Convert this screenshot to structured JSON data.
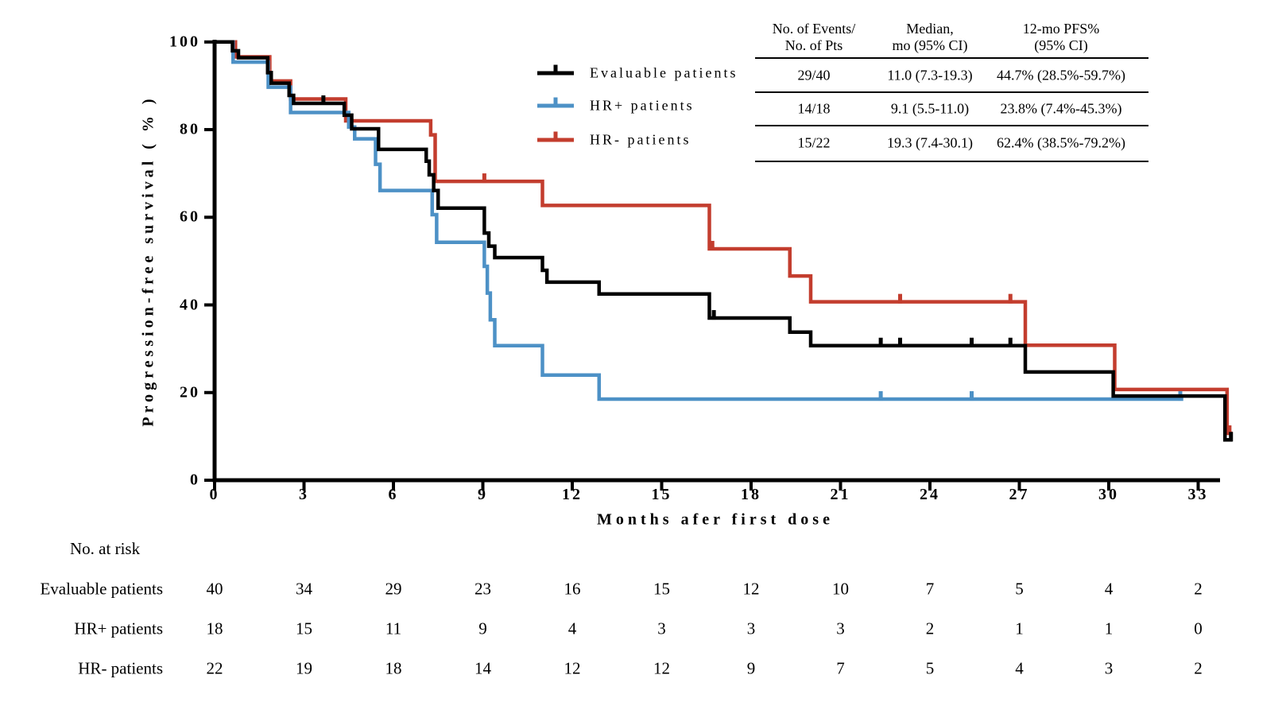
{
  "figure": {
    "y_axis": {
      "title": "Progression-free survival ( % )",
      "ticks": [
        {
          "label": "0",
          "value": 0
        },
        {
          "label": "20",
          "value": 20
        },
        {
          "label": "40",
          "value": 40
        },
        {
          "label": "60",
          "value": 60
        },
        {
          "label": "80",
          "value": 80
        },
        {
          "label": "100",
          "value": 100
        }
      ]
    },
    "x_axis": {
      "title": "Months afer first dose",
      "ticks": [
        {
          "label": "0",
          "value": 0
        },
        {
          "label": "3",
          "value": 3
        },
        {
          "label": "6",
          "value": 6
        },
        {
          "label": "9",
          "value": 9
        },
        {
          "label": "12",
          "value": 12
        },
        {
          "label": "15",
          "value": 15
        },
        {
          "label": "18",
          "value": 18
        },
        {
          "label": "21",
          "value": 21
        },
        {
          "label": "24",
          "value": 24
        },
        {
          "label": "27",
          "value": 27
        },
        {
          "label": "30",
          "value": 30
        },
        {
          "label": "33",
          "value": 33
        }
      ]
    }
  },
  "legend": [
    {
      "label": "Evaluable patients",
      "color": "#000000"
    },
    {
      "label": "HR+ patients",
      "color": "#4d91c6"
    },
    {
      "label": "HR- patients",
      "color": "#c33d2e"
    }
  ],
  "summary_table": {
    "col_headers": [
      [
        "No. of Events/",
        "No. of Pts"
      ],
      [
        "Median,",
        "mo (95% CI)"
      ],
      [
        "12-mo PFS%",
        "(95% CI)"
      ]
    ],
    "rows": [
      [
        "29/40",
        "11.0 (7.3-19.3)",
        "44.7% (28.5%-59.7%)"
      ],
      [
        "14/18",
        "9.1 (5.5-11.0)",
        "23.8% (7.4%-45.3%)"
      ],
      [
        "15/22",
        "19.3 (7.4-30.1)",
        "62.4% (38.5%-79.2%)"
      ]
    ]
  },
  "at_risk": {
    "title": "No. at risk",
    "time_points": [
      0,
      3,
      6,
      9,
      12,
      15,
      18,
      21,
      24,
      27,
      30,
      33
    ],
    "rows": [
      {
        "label": "Evaluable patients",
        "counts": [
          40,
          34,
          29,
          23,
          16,
          15,
          12,
          10,
          7,
          5,
          4,
          2
        ]
      },
      {
        "label": "HR+ patients",
        "counts": [
          18,
          15,
          11,
          9,
          4,
          3,
          3,
          3,
          2,
          1,
          1,
          0
        ]
      },
      {
        "label": "HR- patients",
        "counts": [
          22,
          19,
          18,
          14,
          12,
          12,
          9,
          7,
          5,
          4,
          3,
          2
        ]
      }
    ]
  },
  "chart_data": {
    "type": "line",
    "subtype": "kaplan-meier-step",
    "title": "",
    "xlabel": "Months afer first dose",
    "ylabel": "Progression-free survival ( % )",
    "xlim": [
      0,
      35.5
    ],
    "ylim": [
      0,
      100
    ],
    "grid": false,
    "legend_position": "upper-center-left",
    "series": [
      {
        "name": "Evaluable patients",
        "color": "#000000",
        "events_over_pts": "29/40",
        "median_mo_95ci": "11.0 (7.3-19.3)",
        "pfs12_95ci": "44.7% (28.5%-59.7%)",
        "steps": [
          [
            0,
            100
          ],
          [
            0.6,
            98.0
          ],
          [
            0.8,
            96.4
          ],
          [
            1.78,
            93.0
          ],
          [
            1.9,
            90.6
          ],
          [
            2.5,
            87.8
          ],
          [
            2.65,
            86.0
          ],
          [
            4.35,
            83.3
          ],
          [
            4.6,
            80.2
          ],
          [
            5.5,
            75.5
          ],
          [
            7.1,
            72.8
          ],
          [
            7.2,
            69.7
          ],
          [
            7.35,
            66.1
          ],
          [
            7.5,
            62.1
          ],
          [
            9.05,
            56.4
          ],
          [
            9.2,
            53.4
          ],
          [
            9.4,
            50.8
          ],
          [
            11.0,
            47.9
          ],
          [
            11.15,
            45.2
          ],
          [
            12.9,
            42.5
          ],
          [
            16.6,
            37.0
          ],
          [
            19.3,
            33.8
          ],
          [
            20.0,
            30.7
          ],
          [
            27.2,
            24.7
          ],
          [
            30.15,
            19.2
          ],
          [
            33.9,
            9.2
          ]
        ],
        "end": 34.15,
        "censors": [
          [
            3.65,
            86.0
          ],
          [
            16.75,
            37.0
          ],
          [
            22.35,
            30.7
          ],
          [
            23.0,
            30.7
          ],
          [
            25.4,
            30.7
          ],
          [
            26.7,
            30.7
          ],
          [
            34.1,
            9.2
          ]
        ]
      },
      {
        "name": "HR+ patients",
        "color": "#4d91c6",
        "events_over_pts": "14/18",
        "median_mo_95ci": "9.1 (5.5-11.0)",
        "pfs12_95ci": "23.8% (7.4%-45.3%)",
        "steps": [
          [
            0,
            100
          ],
          [
            0.62,
            95.4
          ],
          [
            1.8,
            89.7
          ],
          [
            2.55,
            83.9
          ],
          [
            4.5,
            80.6
          ],
          [
            4.7,
            77.9
          ],
          [
            5.4,
            72.1
          ],
          [
            5.55,
            66.1
          ],
          [
            7.3,
            60.6
          ],
          [
            7.45,
            54.3
          ],
          [
            9.05,
            48.8
          ],
          [
            9.15,
            42.7
          ],
          [
            9.25,
            36.6
          ],
          [
            9.4,
            30.7
          ],
          [
            11.0,
            24.0
          ],
          [
            12.9,
            18.5
          ]
        ],
        "end": 32.5,
        "censors": [
          [
            22.35,
            18.5
          ],
          [
            25.4,
            18.5
          ],
          [
            32.4,
            18.5
          ]
        ]
      },
      {
        "name": "HR- patients",
        "color": "#c33d2e",
        "events_over_pts": "15/22",
        "median_mo_95ci": "19.3 (7.4-30.1)",
        "pfs12_95ci": "62.4% (38.5%-79.2%)",
        "steps": [
          [
            0,
            100
          ],
          [
            0.7,
            96.6
          ],
          [
            1.85,
            91.1
          ],
          [
            2.55,
            87.0
          ],
          [
            4.4,
            82.0
          ],
          [
            7.25,
            78.8
          ],
          [
            7.4,
            68.2
          ],
          [
            11.0,
            62.7
          ],
          [
            16.6,
            52.8
          ],
          [
            19.3,
            46.6
          ],
          [
            20.0,
            40.7
          ],
          [
            27.2,
            30.8
          ],
          [
            30.2,
            20.7
          ],
          [
            33.97,
            10.7
          ]
        ],
        "end": 34.15,
        "censors": [
          [
            9.05,
            68.2
          ],
          [
            16.7,
            52.8
          ],
          [
            23.0,
            40.7
          ],
          [
            26.7,
            40.7
          ],
          [
            34.05,
            10.7
          ]
        ]
      }
    ]
  }
}
